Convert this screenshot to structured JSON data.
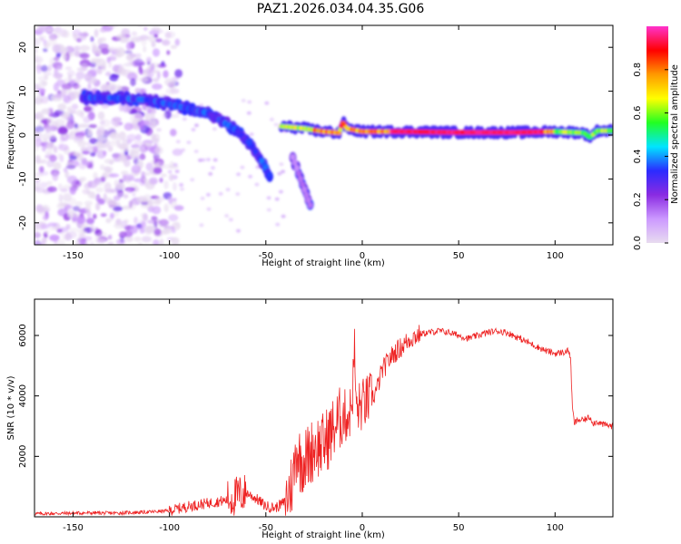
{
  "title": "PAZ1.2026.034.04.35.G06",
  "colors": {
    "snr_line": "#ee2222",
    "spectrum_noise": "#8a2be2",
    "colorbar_stops": [
      "#e8dcf0",
      "#cc99ff",
      "#8a2be2",
      "#2b2bff",
      "#00e5ff",
      "#22ff22",
      "#ffff00",
      "#ff9900",
      "#ff0000",
      "#ff33cc"
    ]
  },
  "chart_data": [
    {
      "type": "heatmap",
      "name": "spectrogram",
      "xlabel": "Height of straight line (km)",
      "ylabel": "Frequency (Hz)",
      "xlim": [
        -170,
        130
      ],
      "ylim": [
        -25,
        25
      ],
      "xticks": [
        "-150",
        "-100",
        "-50",
        "0",
        "50",
        "100"
      ],
      "xtick_values": [
        -150,
        -100,
        -50,
        0,
        50,
        100
      ],
      "yticks": [
        "20",
        "10",
        "0",
        "-10",
        "-20"
      ],
      "ytick_values": [
        20,
        10,
        0,
        -10,
        -20
      ],
      "colorbar": {
        "label": "Normalized spectral amplitude",
        "range": [
          0,
          1
        ],
        "ticks": [
          "0.0",
          "0.2",
          "0.4",
          "0.6",
          "0.8"
        ],
        "tick_values": [
          0.0,
          0.2,
          0.4,
          0.6,
          0.8
        ]
      },
      "ridge_segments": [
        {
          "name": "left-ridge",
          "points": [
            [
              -145,
              8.5
            ],
            [
              -130,
              8.5
            ],
            [
              -110,
              8
            ],
            [
              -100,
              7
            ],
            [
              -90,
              6
            ],
            [
              -80,
              5
            ],
            [
              -72,
              3
            ],
            [
              -65,
              1
            ],
            [
              -58,
              -2
            ],
            [
              -52,
              -6
            ],
            [
              -48,
              -9
            ]
          ],
          "amplitude": 0.35
        },
        {
          "name": "steep-tail",
          "points": [
            [
              -36,
              -5
            ],
            [
              -32,
              -10
            ],
            [
              -27,
              -16
            ]
          ],
          "amplitude": 0.15
        },
        {
          "name": "main-track",
          "points": [
            [
              -42,
              2
            ],
            [
              -30,
              1.5
            ],
            [
              -20,
              0.8
            ],
            [
              -12,
              0.5
            ],
            [
              -10,
              3
            ],
            [
              -8,
              1.5
            ],
            [
              0,
              0.8
            ],
            [
              20,
              0.8
            ],
            [
              50,
              0.6
            ],
            [
              80,
              0.6
            ],
            [
              100,
              0.8
            ],
            [
              115,
              0.5
            ],
            [
              118,
              -0.5
            ],
            [
              122,
              1
            ],
            [
              130,
              1
            ]
          ],
          "amplitude": 0.85
        }
      ]
    },
    {
      "type": "line",
      "name": "snr",
      "xlabel": "Height of straight line (km)",
      "ylabel": "SNR (10 * v/v)",
      "xlim": [
        -170,
        130
      ],
      "ylim": [
        0,
        7200
      ],
      "xticks": [
        "-150",
        "-100",
        "-50",
        "0",
        "50",
        "100"
      ],
      "xtick_values": [
        -150,
        -100,
        -50,
        0,
        50,
        100
      ],
      "yticks": [
        "6000",
        "4000",
        "2000"
      ],
      "ytick_values": [
        6000,
        4000,
        2000
      ],
      "series": [
        {
          "name": "SNR",
          "x": [
            -170,
            -160,
            -150,
            -140,
            -130,
            -120,
            -110,
            -100,
            -95,
            -90,
            -85,
            -80,
            -75,
            -70,
            -65,
            -60,
            -55,
            -50,
            -45,
            -40,
            -36,
            -34,
            -32,
            -30,
            -28,
            -26,
            -24,
            -22,
            -20,
            -18,
            -16,
            -14,
            -12,
            -10,
            -8,
            -6,
            -5,
            -4,
            -3,
            -2,
            0,
            2,
            4,
            6,
            8,
            10,
            12,
            15,
            18,
            20,
            25,
            30,
            35,
            40,
            45,
            50,
            55,
            60,
            65,
            70,
            75,
            80,
            85,
            90,
            95,
            100,
            105,
            107,
            108,
            109,
            110,
            112,
            115,
            118,
            120,
            122,
            125,
            130
          ],
          "y": [
            100,
            110,
            120,
            130,
            120,
            140,
            160,
            200,
            280,
            350,
            400,
            450,
            500,
            550,
            700,
            800,
            600,
            350,
            300,
            500,
            1200,
            2300,
            1800,
            1900,
            2000,
            2200,
            2400,
            2300,
            2400,
            2600,
            2800,
            3000,
            3200,
            3400,
            3300,
            3500,
            4200,
            5500,
            3400,
            3600,
            3700,
            3800,
            3900,
            4000,
            4300,
            4800,
            5000,
            5300,
            5500,
            5600,
            5900,
            6050,
            6100,
            6150,
            6100,
            6000,
            5900,
            6000,
            6100,
            6150,
            6100,
            5950,
            5800,
            5650,
            5500,
            5400,
            5450,
            5500,
            5300,
            3600,
            3100,
            3200,
            3200,
            3300,
            3100,
            3150,
            3050,
            3000
          ]
        }
      ]
    }
  ]
}
